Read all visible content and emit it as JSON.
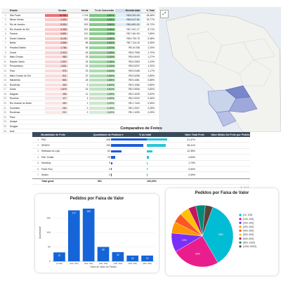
{
  "states_table": {
    "headers": {
      "state": "Estado",
      "orders": "Vendas",
      "sales": "Venda",
      "conversion": "Tx de Conversão",
      "freight": "Receita total",
      "pct": "% Total"
    },
    "rows": [
      {
        "idx": "1.",
        "state": "São Paulo",
        "orders": "15.984",
        "sales": "1.744",
        "conv": "4,80%",
        "freight": "R$ 8.291.00",
        "pct": "28,48%"
      },
      {
        "idx": "2.",
        "state": "Minas Gerais",
        "orders": "4.403",
        "sales": "515",
        "conv": "4,68%",
        "freight": "R$ 6.017.61",
        "pct": "15,77%"
      },
      {
        "idx": "3.",
        "state": "Rio de Janeiro",
        "orders": "5.004",
        "sales": "523",
        "conv": "3,56%",
        "freight": "R$ 4.691.01",
        "pct": "13,72%"
      },
      {
        "idx": "4.",
        "state": "Rio Grande do Sul",
        "orders": "4.263",
        "sales": "512",
        "conv": "3,45%",
        "freight": "R$ 7.621.17",
        "pct": "8,71%"
      },
      {
        "idx": "5.",
        "state": "Paraná",
        "orders": "3.891",
        "sales": "212",
        "conv": "3,25%",
        "freight": "R$ 7.461.53",
        "pct": "7,85%"
      },
      {
        "idx": "6.",
        "state": "Santa Catarina",
        "orders": "3.125",
        "sales": "210",
        "conv": "3,08%",
        "freight": "R$ 6.730.76",
        "pct": "5,38%"
      },
      {
        "idx": "7.",
        "state": "Bahia",
        "orders": "2.896",
        "sales": "88",
        "conv": "3,05%",
        "freight": "R$ 7.114.43",
        "pct": "3,35%"
      },
      {
        "idx": "8.",
        "state": "Paraíba Distrito",
        "orders": "1.784",
        "sales": "55",
        "conv": "2,37%",
        "freight": "R$ 10.038",
        "pct": "2,25%"
      },
      {
        "idx": "9.",
        "state": "Ceará",
        "orders": "2.413",
        "sales": "45",
        "conv": "2,28%",
        "freight": "R$ 6.7068",
        "pct": "1,70%"
      },
      {
        "idx": "10.",
        "state": "Mato Grosso",
        "orders": "980",
        "sales": "25",
        "conv": "2,24%",
        "freight": "R$ 6.6043",
        "pct": "1,27%"
      },
      {
        "idx": "11.",
        "state": "Espírito Santo",
        "orders": "1.937",
        "sales": "24",
        "conv": "2,18%",
        "freight": "R$ 6.2083",
        "pct": "1,23%"
      },
      {
        "idx": "12.",
        "state": "Pernambuco",
        "orders": "1.661",
        "sales": "24",
        "conv": "2,10%",
        "freight": "R$ 6.0237",
        "pct": "1,20%"
      },
      {
        "idx": "13.",
        "state": "Pará",
        "orders": "975",
        "sales": "23",
        "conv": "2,04%",
        "freight": "R$ 5.9188",
        "pct": "1,17%"
      },
      {
        "idx": "14.",
        "state": "Mato Grosso do Sul",
        "orders": "811",
        "sales": "22",
        "conv": "1,96%",
        "freight": "R$ 5.6268",
        "pct": "0,89%"
      },
      {
        "idx": "15.",
        "state": "Maranhão",
        "orders": "863",
        "sales": "18",
        "conv": "1,88%",
        "freight": "R$ 5.4381",
        "pct": "0,88%"
      },
      {
        "idx": "16.",
        "state": "Rondônia",
        "orders": "463",
        "sales": "9",
        "conv": "1,83%",
        "freight": "R$ 3.1066",
        "pct": "0,85%"
      },
      {
        "idx": "17.",
        "state": "Goiás",
        "orders": "1.878",
        "sales": "16",
        "conv": "1,81%",
        "freight": "R$ 2.9906",
        "pct": "0,80%"
      },
      {
        "idx": "18.",
        "state": "Alagoas",
        "orders": "355",
        "sales": "11",
        "conv": "1,39%",
        "freight": "R$ 2.4039",
        "pct": "0,62%"
      },
      {
        "idx": "19.",
        "state": "Roraima",
        "orders": "117",
        "sales": "4",
        "conv": "1,40%",
        "freight": "R$ 2.0020",
        "pct": "0,46%"
      },
      {
        "idx": "20.",
        "state": "Rio Grande do Norte",
        "orders": "490",
        "sales": "1",
        "conv": "1,20%",
        "freight": "R$ 1.7443",
        "pct": "0,35%"
      },
      {
        "idx": "21.",
        "state": "Tocantins",
        "orders": "250",
        "sales": "2",
        "conv": "1,10%",
        "freight": "R$ 1.2007",
        "pct": "0,28%"
      },
      {
        "idx": "22.",
        "state": "Rondônia",
        "orders": "221",
        "sales": "2",
        "conv": "1,00%",
        "freight": "R$ 1.1090",
        "pct": "0,25%"
      },
      {
        "idx": "23.",
        "state": "Piauí",
        "orders": "",
        "sales": "",
        "conv": "",
        "freight": "",
        "pct": ""
      },
      {
        "idx": "24.",
        "state": "Amapá",
        "orders": "",
        "sales": "",
        "conv": "",
        "freight": "",
        "pct": ""
      },
      {
        "idx": "25.",
        "state": "Sergipe",
        "orders": "",
        "sales": "",
        "conv": "",
        "freight": "",
        "pct": ""
      },
      {
        "idx": "26.",
        "state": "Acre",
        "orders": "",
        "sales": "",
        "conv": "",
        "freight": "",
        "pct": ""
      }
    ]
  },
  "map": {
    "zoom_icon": "expand-icon"
  },
  "freight_table": {
    "title": "Comparativo de Fretes",
    "headers": {
      "mode": "Modalidade de Frete",
      "qty": "Quantidade de Pedidos ▾",
      "pct": "% do total",
      "vt": "Valor Total Frete",
      "vm": "Valor Médio Do Frete por Pedido"
    },
    "rows": [
      {
        "idx": "1.",
        "mode": "PAC",
        "qty": "208",
        "qty_frac": 1.0,
        "pct": "41,47%",
        "pct_frac": 0.41
      },
      {
        "idx": "2.",
        "mode": "SEDEX",
        "qty": "190",
        "qty_frac": 0.91,
        "pct": "38,11%",
        "pct_frac": 0.38
      },
      {
        "idx": "3.",
        "mode": "Retirada na Loja",
        "qty": "62",
        "qty_frac": 0.3,
        "pct": "12,35%",
        "pct_frac": 0.12
      },
      {
        "idx": "4.",
        "mode": "PAC Grátis",
        "qty": "23",
        "qty_frac": 0.11,
        "pct": "4,59%",
        "pct_frac": 0.046
      },
      {
        "idx": "5.",
        "mode": "Motoboy",
        "qty": "9",
        "qty_frac": 0.04,
        "pct": "1,79%",
        "pct_frac": 0.018
      },
      {
        "idx": "6.",
        "mode": "Frete Fixo",
        "qty": "3",
        "qty_frac": 0.015,
        "pct": "0,59%",
        "pct_frac": 0.006
      },
      {
        "idx": "7.",
        "mode": "Sedex",
        "qty": "2",
        "qty_frac": 0.01,
        "pct": "0,39%",
        "pct_frac": 0.004
      }
    ],
    "total": {
      "label": "Total geral",
      "qty": "501",
      "pct": "100,00%"
    },
    "pager": "1 - 7 / 7"
  },
  "chart_data": [
    {
      "type": "bar",
      "title": "Pedidos por Faixa de Valor",
      "xlabel": "Faixa de Valor do Pedido",
      "ylabel": "Quantidade",
      "categories": [
        "[0-100]",
        "[100, 200]",
        "[200, 300]",
        "[300, 400]",
        "[400, 500]",
        "[500, 600]",
        "[600, 800]"
      ],
      "values": [
        31,
        177,
        183,
        50,
        32,
        20,
        20
      ],
      "ylim": [
        0,
        200
      ],
      "yticks": [
        0,
        50,
        100,
        150
      ],
      "color": "#1565d8"
    },
    {
      "type": "pie",
      "title": "Pedidos por Faixa de Valor",
      "labels": [
        "[10, 100]",
        "[100, 200]",
        "[200, 300]",
        "[300, 400]",
        "[400, 500]",
        "[500, 600]",
        "[600, 800]",
        "[800, 1000]",
        "[1000, 5000]"
      ],
      "values": [
        36,
        25,
        10,
        6,
        5,
        5,
        4,
        5,
        4
      ],
      "colors": [
        "#00bcd4",
        "#e91e8c",
        "#7b2ff7",
        "#ff9800",
        "#ff5722",
        "#ffc107",
        "#c2185b",
        "#00897b",
        "#5d4037"
      ],
      "slice_labels": [
        "36%",
        "25%",
        "10%",
        "6%",
        "5%",
        "5%",
        "4%",
        "5%",
        "4%"
      ]
    }
  ]
}
